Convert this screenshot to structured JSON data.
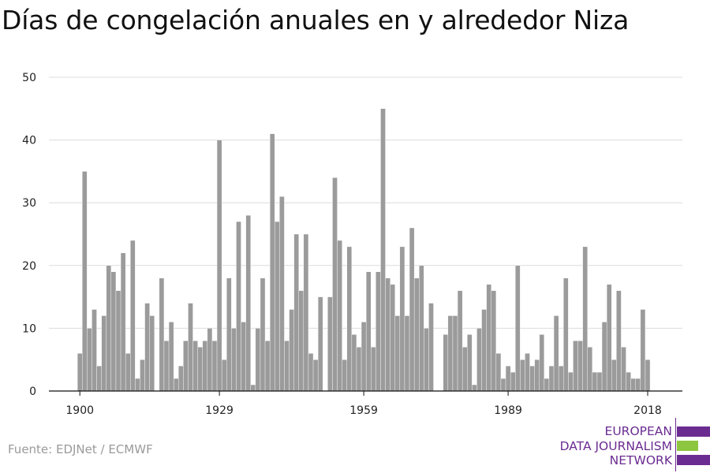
{
  "chart_data": {
    "type": "bar",
    "title": "Días de congelación anuales en y alrededor Niza",
    "xlabel": "",
    "ylabel": "",
    "ylim": [
      0,
      50
    ],
    "yticks": [
      0,
      10,
      20,
      30,
      40,
      50
    ],
    "xticks": [
      "1900",
      "1929",
      "1959",
      "1989",
      "2018"
    ],
    "grid": true,
    "bar_color": "#9b9b9b",
    "x": [
      1900,
      1901,
      1902,
      1903,
      1904,
      1905,
      1906,
      1907,
      1908,
      1909,
      1910,
      1911,
      1912,
      1913,
      1914,
      1915,
      1916,
      1917,
      1918,
      1919,
      1920,
      1921,
      1922,
      1923,
      1924,
      1925,
      1926,
      1927,
      1928,
      1929,
      1930,
      1931,
      1932,
      1933,
      1934,
      1935,
      1936,
      1937,
      1938,
      1939,
      1940,
      1941,
      1942,
      1943,
      1944,
      1945,
      1946,
      1947,
      1948,
      1949,
      1950,
      1951,
      1952,
      1953,
      1954,
      1955,
      1956,
      1957,
      1958,
      1959,
      1960,
      1961,
      1962,
      1963,
      1964,
      1965,
      1966,
      1967,
      1968,
      1969,
      1970,
      1971,
      1972,
      1973,
      1974,
      1975,
      1976,
      1977,
      1978,
      1979,
      1980,
      1981,
      1982,
      1983,
      1984,
      1985,
      1986,
      1987,
      1988,
      1989,
      1990,
      1991,
      1992,
      1993,
      1994,
      1995,
      1996,
      1997,
      1998,
      1999,
      2000,
      2001,
      2002,
      2003,
      2004,
      2005,
      2006,
      2007,
      2008,
      2009,
      2010,
      2011,
      2012,
      2013,
      2014,
      2015,
      2016,
      2017,
      2018
    ],
    "values": [
      6,
      35,
      10,
      13,
      4,
      12,
      20,
      19,
      16,
      22,
      6,
      24,
      2,
      5,
      14,
      12,
      0,
      18,
      8,
      11,
      2,
      4,
      8,
      14,
      8,
      7,
      8,
      10,
      8,
      40,
      5,
      18,
      10,
      27,
      11,
      28,
      1,
      10,
      18,
      8,
      41,
      27,
      31,
      8,
      13,
      25,
      16,
      25,
      6,
      5,
      15,
      0,
      15,
      34,
      24,
      5,
      23,
      9,
      7,
      11,
      19,
      7,
      19,
      45,
      18,
      17,
      12,
      23,
      12,
      26,
      18,
      20,
      10,
      14,
      0,
      0,
      9,
      12,
      12,
      16,
      7,
      9,
      1,
      10,
      13,
      17,
      16,
      6,
      2,
      4,
      3,
      20,
      5,
      6,
      4,
      5,
      9,
      2,
      4,
      12,
      4,
      18,
      3,
      8,
      8,
      23,
      7,
      3,
      3,
      11,
      17,
      5,
      16,
      7,
      3,
      2,
      2,
      13,
      5
    ]
  },
  "source": "Fuente: EDJNet / ECMWF",
  "logo": {
    "lines": [
      "EUROPEAN",
      "DATA JOURNALISM",
      "NETWORK"
    ],
    "colors": [
      "#6b2c91",
      "#8dc63f",
      "#6b2c91"
    ]
  }
}
